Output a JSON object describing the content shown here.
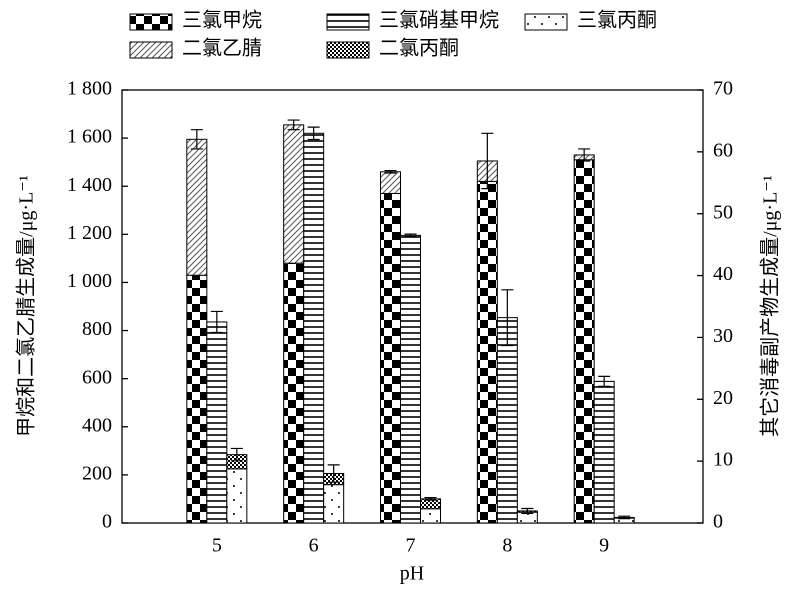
{
  "chart_data": {
    "type": "bar",
    "x_label": "pH",
    "y_label": "甲烷和二氯乙腈生成量/μg·L⁻¹",
    "y2_label": "其它消毒副产物生成量/μg·L⁻¹",
    "categories": [
      "5",
      "6",
      "7",
      "8",
      "9"
    ],
    "ylim": [
      0,
      1800
    ],
    "yticks": [
      0,
      200,
      400,
      600,
      800,
      {
        "value": 1000,
        "label": "1 000"
      },
      {
        "value": 1200,
        "label": "1 200"
      },
      {
        "value": 1400,
        "label": "1 400"
      },
      {
        "value": 1600,
        "label": "1 600"
      },
      {
        "value": 1800,
        "label": "1 800"
      }
    ],
    "y2lim": [
      0,
      70
    ],
    "y2ticks": [
      0,
      10,
      20,
      30,
      40,
      50,
      60,
      70
    ],
    "series": [
      {
        "name": "三氯甲烷",
        "pattern": "checker",
        "values": [
          1030,
          1080,
          1370,
          1420,
          1510
        ]
      },
      {
        "name": "三氯硝基甲烷",
        "pattern": "hlines",
        "axis": "y2",
        "values": [
          32.5,
          63,
          46.5,
          33.2,
          22.9
        ],
        "errors": [
          1.7,
          1.0,
          0.2,
          4.5,
          0.8
        ]
      },
      {
        "name": "三氯丙酮",
        "pattern": "dots",
        "axis": "y2",
        "values": [
          8.75,
          6.2,
          2.3,
          1.75,
          0.8
        ]
      },
      {
        "name": "二氯乙腈",
        "pattern": "hatch",
        "values": [
          565,
          575,
          90,
          85,
          20
        ],
        "errors": [
          40,
          20,
          5,
          115,
          25
        ]
      },
      {
        "name": "二氯丙酮",
        "pattern": "crosshatch",
        "axis": "y2",
        "values": [
          2.3,
          1.8,
          1.6,
          0.2,
          0.1
        ],
        "errors": [
          1.0,
          1.4,
          0.2,
          0.4,
          0.2
        ]
      }
    ]
  }
}
